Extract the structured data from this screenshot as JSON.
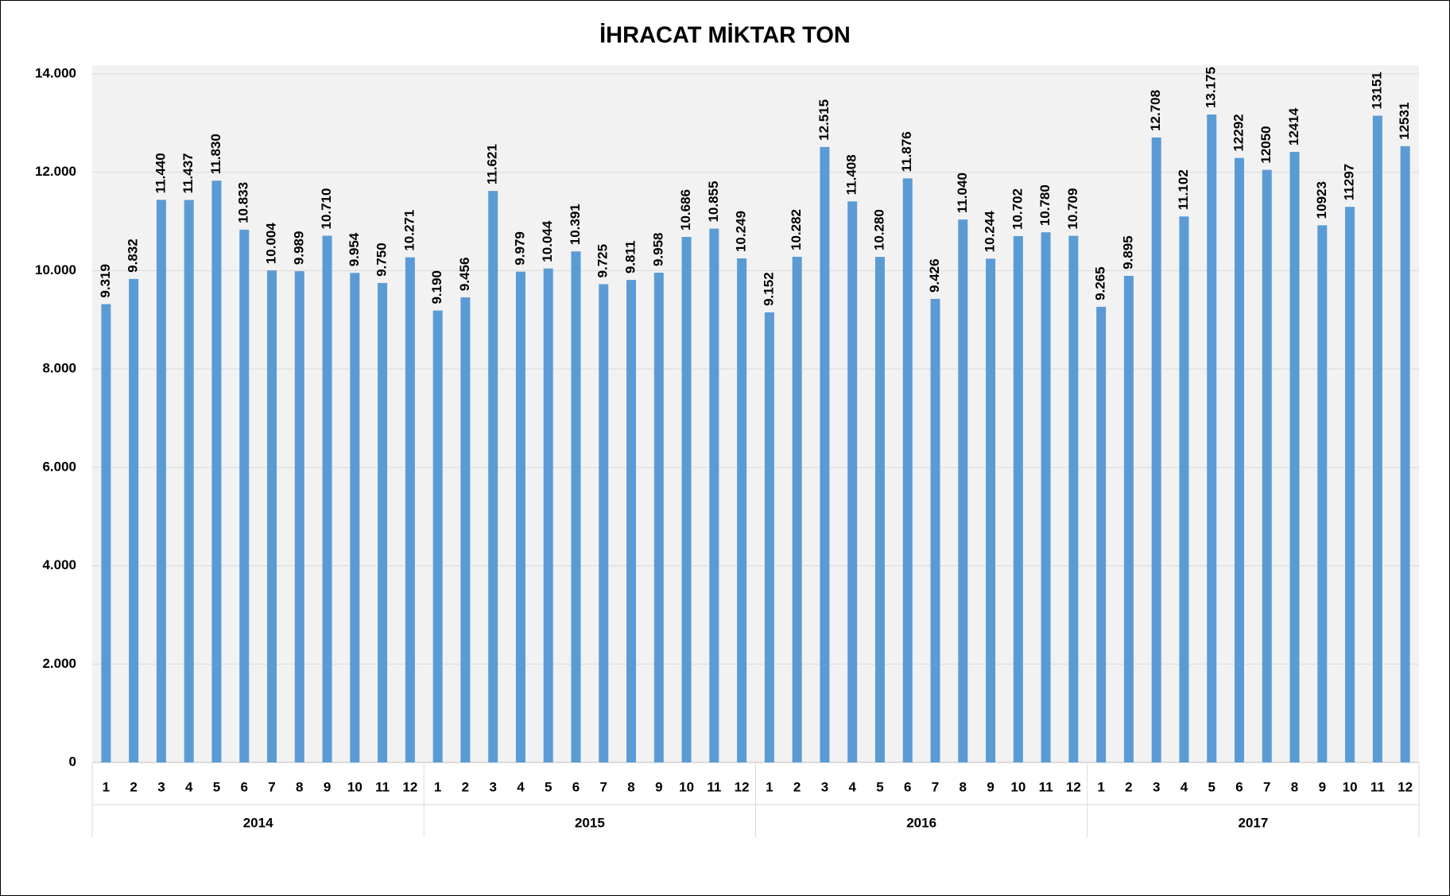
{
  "chart_data": {
    "type": "bar",
    "title": "İHRACAT MİKTAR TON",
    "categories": [
      "1",
      "2",
      "3",
      "4",
      "5",
      "6",
      "7",
      "8",
      "9",
      "10",
      "11",
      "12",
      "1",
      "2",
      "3",
      "4",
      "5",
      "6",
      "7",
      "8",
      "9",
      "10",
      "11",
      "12",
      "1",
      "2",
      "3",
      "4",
      "5",
      "6",
      "7",
      "8",
      "9",
      "10",
      "11",
      "12",
      "1",
      "2",
      "3",
      "4",
      "5",
      "6",
      "7",
      "8",
      "9",
      "10",
      "11",
      "12"
    ],
    "year_groups": [
      "2014",
      "2015",
      "2016",
      "2017"
    ],
    "values": [
      9319,
      9832,
      11440,
      11437,
      11830,
      10833,
      10004,
      9989,
      10710,
      9954,
      9750,
      10271,
      9190,
      9456,
      11621,
      9979,
      10044,
      10391,
      9725,
      9811,
      9958,
      10686,
      10855,
      10249,
      9152,
      10282,
      12515,
      11408,
      10280,
      11876,
      9426,
      11040,
      10244,
      10702,
      10780,
      10709,
      9265,
      9895,
      12708,
      11102,
      13175,
      12292,
      12050,
      12414,
      10923,
      11297,
      13151,
      12531
    ],
    "value_labels": [
      "9.319",
      "9.832",
      "11.440",
      "11.437",
      "11.830",
      "10.833",
      "10.004",
      "9.989",
      "10.710",
      "9.954",
      "9.750",
      "10.271",
      "9.190",
      "9.456",
      "11.621",
      "9.979",
      "10.044",
      "10.391",
      "9.725",
      "9.811",
      "9.958",
      "10.686",
      "10.855",
      "10.249",
      "9.152",
      "10.282",
      "12.515",
      "11.408",
      "10.280",
      "11.876",
      "9.426",
      "11.040",
      "10.244",
      "10.702",
      "10.780",
      "10.709",
      "9.265",
      "9.895",
      "12.708",
      "11.102",
      "13.175",
      "12292",
      "12050",
      "12414",
      "10923",
      "11297",
      "13151",
      "12531"
    ],
    "color": "#5b9bd5",
    "ylim": [
      0,
      14000
    ],
    "yticks": [
      0,
      {
        "value": 2000,
        "label": "2.000"
      },
      {
        "value": 4000,
        "label": "4.000"
      },
      {
        "value": 6000,
        "label": "6.000"
      },
      {
        "value": 8000,
        "label": "8.000"
      },
      {
        "value": 10000,
        "label": "10.000"
      },
      {
        "value": 12000,
        "label": "12.000"
      },
      {
        "value": 14000,
        "label": "14.000"
      }
    ],
    "grid": true
  }
}
